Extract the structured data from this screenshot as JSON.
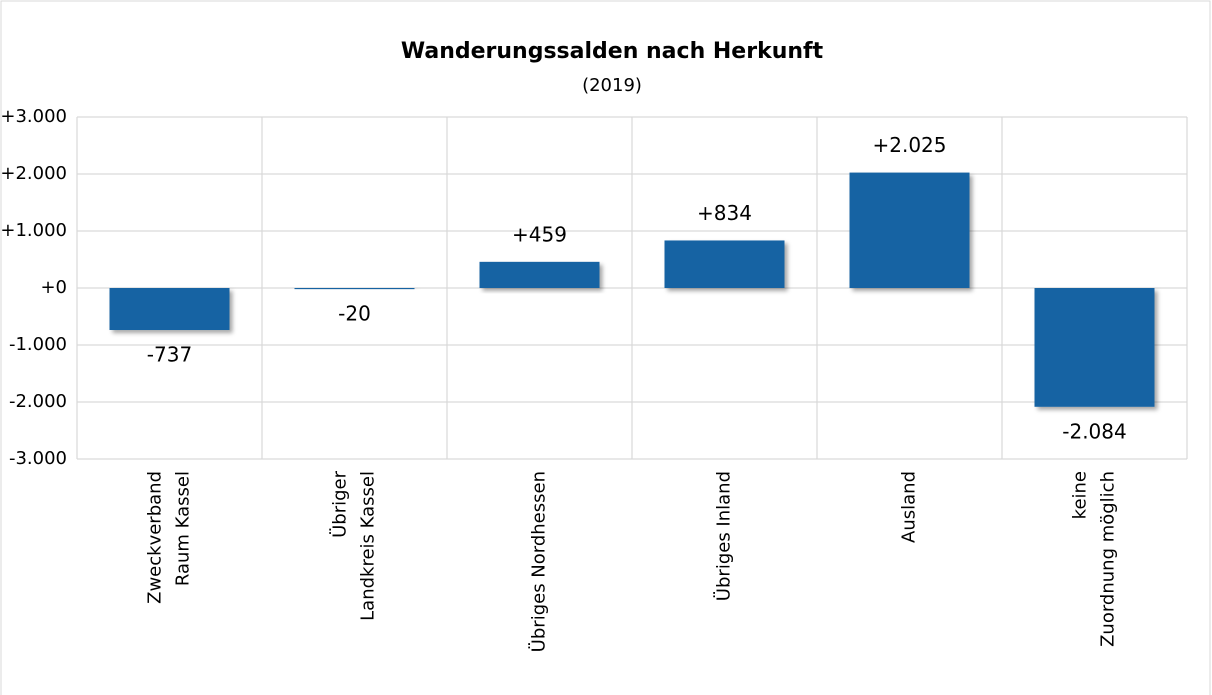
{
  "chart_data": {
    "type": "bar",
    "title": "Wanderungssalden nach Herkunft",
    "subtitle": "(2019)",
    "categories": [
      "Zweckverband\nRaum Kassel",
      "Übriger\nLandkreis Kassel",
      "Übriges Nordhessen",
      "Übriges Inland",
      "Ausland",
      "keine\nZuordnung möglich"
    ],
    "values": [
      -737,
      -20,
      459,
      834,
      2025,
      -2084
    ],
    "value_labels": [
      "-737",
      "-20",
      "+459",
      "+834",
      "+2.025",
      "-2.084"
    ],
    "color": "#1764a3",
    "ylim": [
      -3000,
      3000
    ],
    "yticks": [
      {
        "value": -3000,
        "label": "-3.000"
      },
      {
        "value": -2000,
        "label": "-2.000"
      },
      {
        "value": -1000,
        "label": "-1.000"
      },
      {
        "value": 0,
        "label": "+0"
      },
      {
        "value": 1000,
        "label": "+1.000"
      },
      {
        "value": 2000,
        "label": "+2.000"
      },
      {
        "value": 3000,
        "label": "+3.000"
      }
    ],
    "grid": true
  }
}
